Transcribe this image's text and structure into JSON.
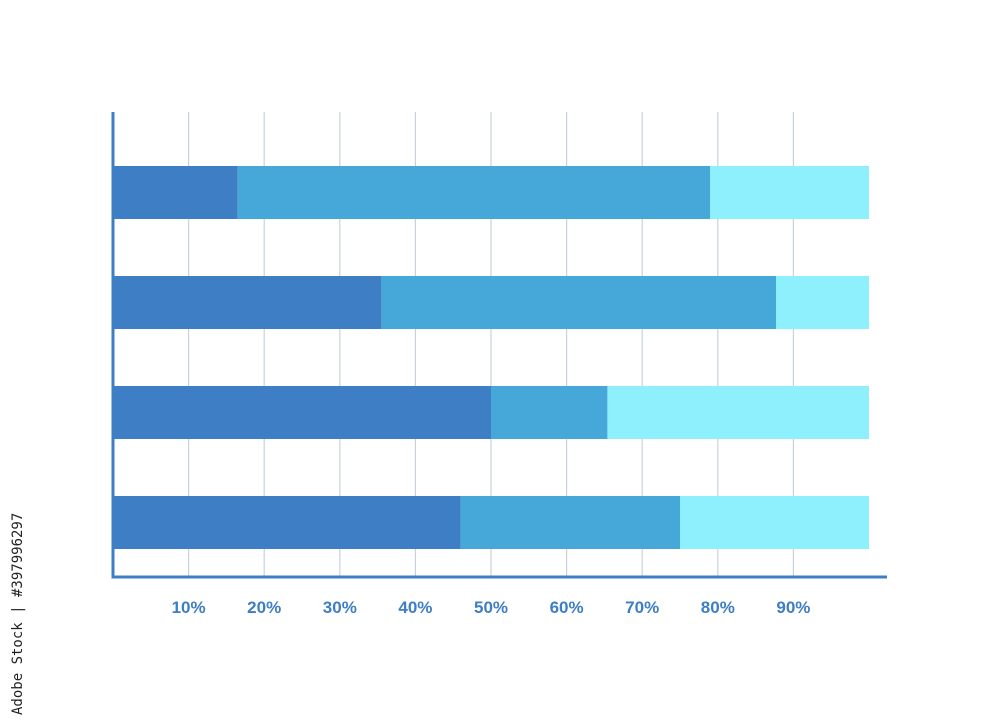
{
  "side_text": "Adobe Stock | #397996297",
  "chart_data": {
    "type": "bar",
    "orientation": "horizontal",
    "stacked": true,
    "categories": [
      "",
      "",
      "",
      ""
    ],
    "series": [
      {
        "values": [
          16.5,
          35.5,
          50,
          46
        ],
        "color": "#3d7ec4"
      },
      {
        "values": [
          62.5,
          52.2,
          15.4,
          29
        ],
        "color": "#46a7d9"
      },
      {
        "values": [
          21,
          12.3,
          34.6,
          25
        ],
        "color": "#8ef0fd"
      }
    ],
    "xlim": [
      0,
      100
    ],
    "xticks": [
      10,
      20,
      30,
      40,
      50,
      60,
      70,
      80,
      90
    ],
    "xtick_labels": [
      "10%",
      "20%",
      "30%",
      "40%",
      "50%",
      "60%",
      "70%",
      "80%",
      "90%"
    ],
    "grid": "vertical",
    "title": "",
    "xlabel": "",
    "ylabel": "",
    "colors": {
      "axis": "#3d7ec4",
      "grid": "#c8d2dc",
      "tick_label": "#3d7ec4"
    }
  }
}
